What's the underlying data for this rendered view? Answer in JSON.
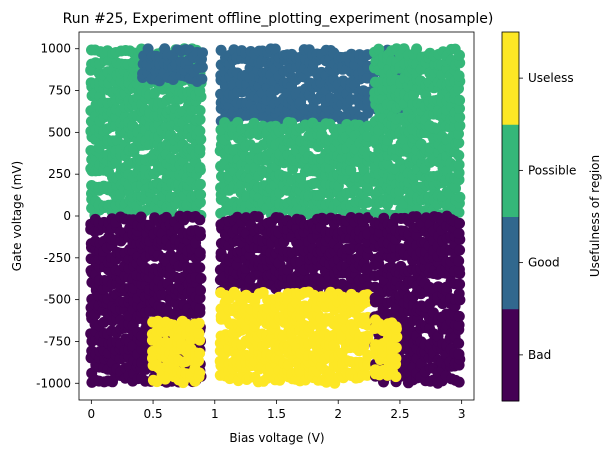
{
  "chart_data": {
    "type": "scatter",
    "title": "Run #25, Experiment offline_plotting_experiment (nosample)",
    "xlabel": "Bias voltage (V)",
    "ylabel": "Gate voltage (mV)",
    "xlim": [
      -0.1,
      3.1
    ],
    "ylim": [
      -1100,
      1100
    ],
    "xticks": [
      0,
      0.5,
      1,
      1.5,
      2,
      2.5,
      3
    ],
    "xtick_labels": [
      "0",
      "0.5",
      "1",
      "1.5",
      "2",
      "2.5",
      "3"
    ],
    "yticks": [
      1000,
      750,
      500,
      250,
      0,
      -250,
      -500,
      -750,
      -1000
    ],
    "ytick_labels": [
      "1000",
      "750",
      "500",
      "250",
      "0",
      "-250",
      "-500",
      "-750",
      "-1000"
    ],
    "grid": false,
    "colorbar": {
      "label": "Usefulness of region",
      "categories": [
        {
          "label": "Bad",
          "color": "#440154"
        },
        {
          "label": "Good",
          "color": "#31688e"
        },
        {
          "label": "Possible",
          "color": "#35b779"
        },
        {
          "label": "Useless",
          "color": "#fde725"
        }
      ]
    },
    "regions": [
      {
        "category": "Possible",
        "x_range": [
          0,
          0.9
        ],
        "y_range": [
          0,
          1000
        ]
      },
      {
        "category": "Good",
        "x_range": [
          0.42,
          0.9
        ],
        "y_range": [
          800,
          1000
        ]
      },
      {
        "category": "Bad",
        "x_range": [
          0,
          0.9
        ],
        "y_range": [
          -1000,
          0
        ]
      },
      {
        "category": "Useless",
        "x_range": [
          0.5,
          0.9
        ],
        "y_range": [
          -1000,
          -620
        ]
      },
      {
        "category": "Good",
        "x_range": [
          1.05,
          2.25
        ],
        "y_range": [
          560,
          1000
        ]
      },
      {
        "category": "Possible",
        "x_range": [
          1.05,
          2.25
        ],
        "y_range": [
          0,
          560
        ]
      },
      {
        "category": "Bad",
        "x_range": [
          1.05,
          2.25
        ],
        "y_range": [
          -450,
          0
        ]
      },
      {
        "category": "Useless",
        "x_range": [
          1.05,
          2.25
        ],
        "y_range": [
          -1000,
          -450
        ]
      },
      {
        "category": "Good",
        "x_range": [
          2.3,
          2.6
        ],
        "y_range": [
          600,
          1000
        ]
      },
      {
        "category": "Possible",
        "x_range": [
          2.3,
          3.0
        ],
        "y_range": [
          0,
          1000
        ]
      },
      {
        "category": "Bad",
        "x_range": [
          2.3,
          3.0
        ],
        "y_range": [
          -1000,
          0
        ]
      },
      {
        "category": "Useless",
        "x_range": [
          2.3,
          2.5
        ],
        "y_range": [
          -980,
          -620
        ]
      }
    ]
  }
}
